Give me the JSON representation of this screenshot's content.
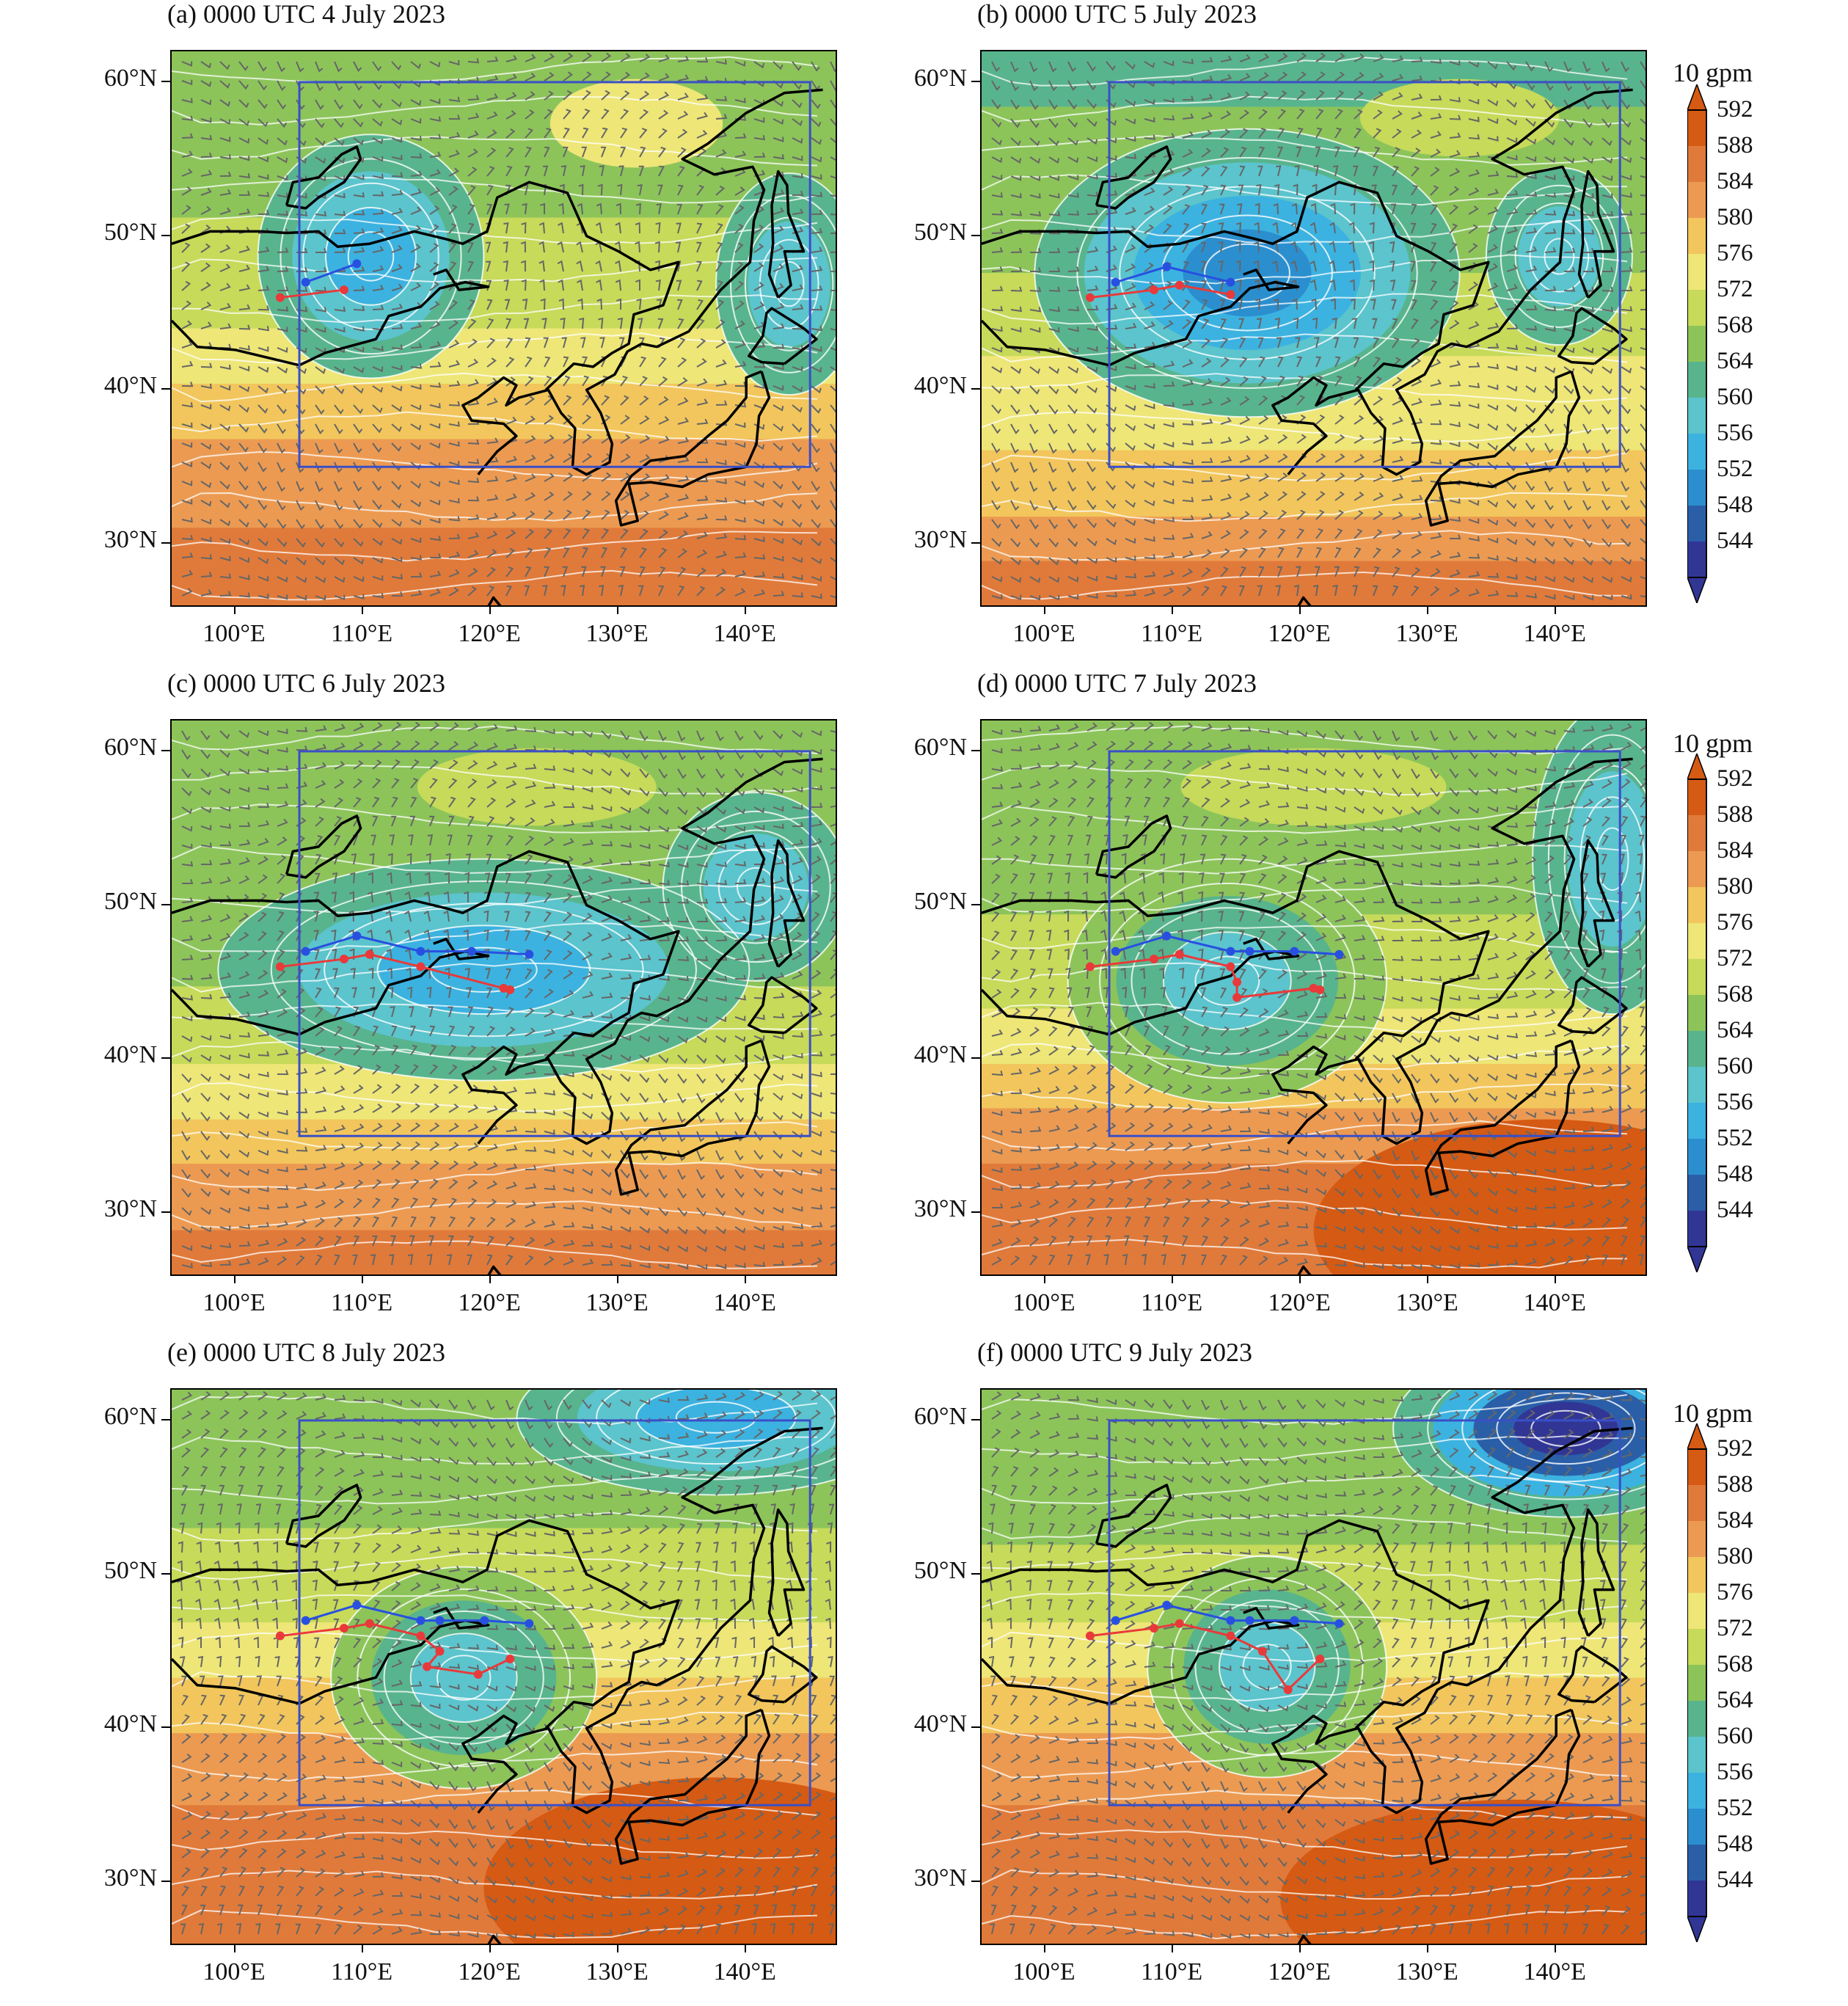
{
  "panels": [
    {
      "id": "a",
      "title": "(a) 0000 UTC 4 July 2023",
      "blue": [
        [
          105.5,
          47
        ],
        [
          109.5,
          48.2
        ]
      ],
      "red": [
        [
          103.5,
          46
        ],
        [
          108.5,
          46.5
        ]
      ],
      "field": "p1"
    },
    {
      "id": "b",
      "title": "(b) 0000 UTC 5 July 2023",
      "blue": [
        [
          105.5,
          47
        ],
        [
          109.5,
          48
        ],
        [
          114.5,
          47
        ]
      ],
      "red": [
        [
          103.5,
          46
        ],
        [
          108.5,
          46.5
        ],
        [
          110.5,
          46.8
        ],
        [
          114.5,
          46.2
        ]
      ],
      "field": "p2"
    },
    {
      "id": "c",
      "title": "(c) 0000 UTC 6 July 2023",
      "blue": [
        [
          105.5,
          47
        ],
        [
          109.5,
          48
        ],
        [
          114.5,
          47
        ],
        [
          118.5,
          47
        ],
        [
          123,
          46.8
        ]
      ],
      "red": [
        [
          103.5,
          46
        ],
        [
          108.5,
          46.5
        ],
        [
          110.5,
          46.8
        ],
        [
          114.5,
          46
        ],
        [
          121,
          44.6
        ],
        [
          121.5,
          44.5
        ]
      ],
      "field": "p3"
    },
    {
      "id": "d",
      "title": "(d) 0000 UTC 7 July 2023",
      "blue": [
        [
          105.5,
          47
        ],
        [
          109.5,
          48
        ],
        [
          114.5,
          47
        ],
        [
          116,
          47
        ],
        [
          119.5,
          47
        ],
        [
          123,
          46.8
        ]
      ],
      "red": [
        [
          103.5,
          46
        ],
        [
          108.5,
          46.5
        ],
        [
          110.5,
          46.8
        ],
        [
          114.5,
          46
        ],
        [
          115,
          45
        ],
        [
          115,
          44
        ],
        [
          121,
          44.6
        ],
        [
          121.5,
          44.5
        ]
      ],
      "field": "p4"
    },
    {
      "id": "e",
      "title": "(e) 0000 UTC 8 July 2023",
      "blue": [
        [
          105.5,
          47
        ],
        [
          109.5,
          48
        ],
        [
          114.5,
          47
        ],
        [
          116,
          47
        ],
        [
          119.5,
          47
        ],
        [
          123,
          46.8
        ]
      ],
      "red": [
        [
          103.5,
          46
        ],
        [
          108.5,
          46.5
        ],
        [
          110.5,
          46.8
        ],
        [
          114.5,
          46
        ],
        [
          116,
          45
        ],
        [
          115,
          44
        ],
        [
          119,
          43.5
        ],
        [
          121.5,
          44.5
        ]
      ],
      "field": "p5"
    },
    {
      "id": "f",
      "title": "(f) 0000 UTC 9 July 2023",
      "blue": [
        [
          105.5,
          47
        ],
        [
          109.5,
          48
        ],
        [
          114.5,
          47
        ],
        [
          116,
          47
        ],
        [
          119.5,
          47
        ],
        [
          123,
          46.8
        ]
      ],
      "red": [
        [
          103.5,
          46
        ],
        [
          108.5,
          46.5
        ],
        [
          110.5,
          46.8
        ],
        [
          114.5,
          46
        ],
        [
          117,
          45
        ],
        [
          119,
          42.5
        ],
        [
          121.5,
          44.5
        ]
      ],
      "field": "p6"
    }
  ],
  "axes": {
    "lat_labels": [
      "60°N",
      "50°N",
      "40°N",
      "30°N"
    ],
    "lat_values": [
      60,
      50,
      40,
      30
    ],
    "lon_labels": [
      "100°E",
      "110°E",
      "120°E",
      "130°E",
      "140°E"
    ],
    "lon_values": [
      100,
      110,
      120,
      130,
      140
    ],
    "lon_range": [
      95,
      147
    ],
    "lat_range": [
      26,
      62
    ],
    "box": {
      "lon": [
        105,
        145
      ],
      "lat": [
        35,
        60
      ]
    }
  },
  "colorbar": {
    "title": "10 gpm",
    "ticks": [
      "592",
      "588",
      "584",
      "580",
      "576",
      "572",
      "568",
      "564",
      "560",
      "556",
      "552",
      "548",
      "544"
    ],
    "colors": [
      "#d55a13",
      "#e07a3a",
      "#ec9a52",
      "#f2c65c",
      "#eee677",
      "#c7da5a",
      "#8cc45a",
      "#58b48d",
      "#5bc4cd",
      "#3cb2e0",
      "#2b8fcf",
      "#2a5fa8",
      "#313695"
    ]
  },
  "colors": {
    "track_blue": "#2850e0",
    "track_red": "#e83a3a",
    "box": "#3a4fc7",
    "wind": "#666666",
    "contour": "#ffffff"
  }
}
